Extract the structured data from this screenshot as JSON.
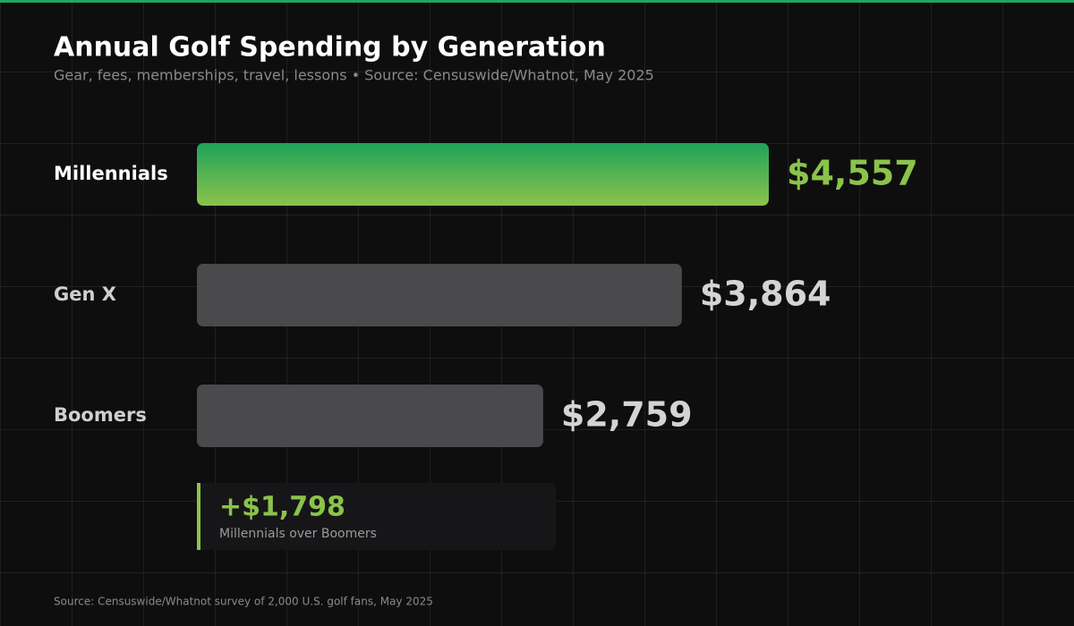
{
  "chart_data": {
    "type": "bar",
    "orientation": "horizontal",
    "title": "Annual Golf Spending by Generation",
    "subtitle": "Gear, fees, memberships, travel, lessons • Source: Censuswide/Whatnot, May 2025",
    "categories": [
      "Millennials",
      "Gen X",
      "Boomers"
    ],
    "values": [
      4557,
      3864,
      2759
    ],
    "value_labels": [
      "$4,557",
      "$3,864",
      "$2,759"
    ],
    "colors": [
      "#8bc34a",
      "#4a4a4c",
      "#4a4a4c"
    ],
    "highlight": 0,
    "callout": {
      "label": "+$1,798",
      "text": "Millennials over Boomers"
    },
    "footer": "Source: Censuswide/Whatnot survey of 2,000 U.S. golf fans, May 2025"
  }
}
